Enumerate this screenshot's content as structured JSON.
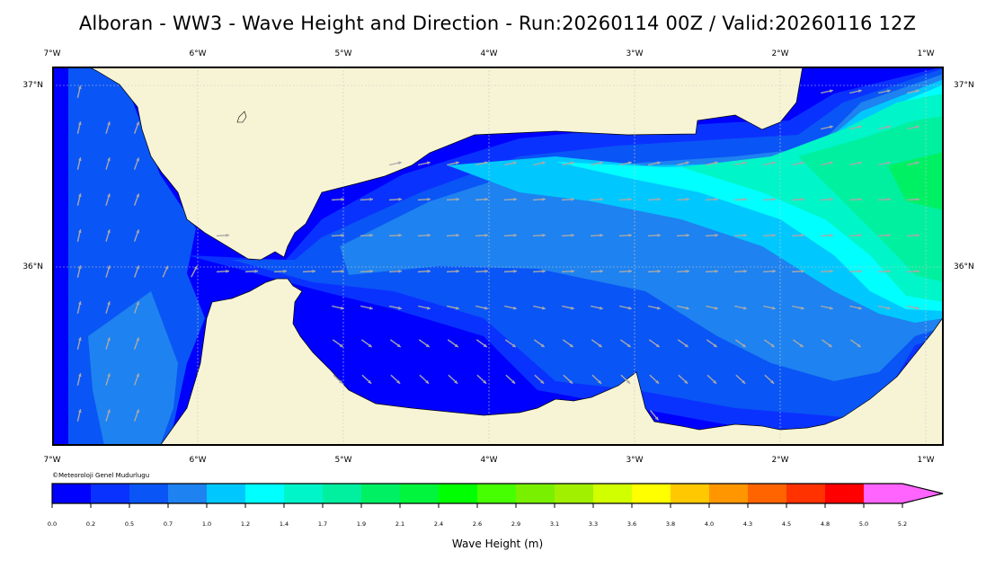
{
  "title": "Alboran - WW3 - Wave Height and Direction - Run:20260114 00Z / Valid:20260116 12Z",
  "map": {
    "lon_labels": [
      "7°W",
      "6°W",
      "5°W",
      "4°W",
      "3°W",
      "2°W",
      "1°W"
    ],
    "lat_labels": [
      "37°N",
      "36°N"
    ],
    "credit": "©Meteoroloji Genel Mudurlugu",
    "land_color": "#f7f4d6",
    "arrow_color": "#a9a9a9"
  },
  "colorbar": {
    "title": "Wave Height (m)",
    "colors": [
      "#0000ff",
      "#0a32ff",
      "#0a55f5",
      "#1e82f0",
      "#00c8ff",
      "#00ffff",
      "#00f5c8",
      "#00f0a0",
      "#00f064",
      "#00f53c",
      "#00ff00",
      "#46ff00",
      "#78f000",
      "#a0f000",
      "#d2ff00",
      "#ffff00",
      "#ffc800",
      "#ff9600",
      "#ff6400",
      "#ff3200",
      "#ff0000",
      "#ff64ff"
    ],
    "labels": [
      "0.0",
      "0.2",
      "0.5",
      "0.7",
      "1.0",
      "1.2",
      "1.4",
      "1.7",
      "1.9",
      "2.1",
      "2.4",
      "2.6",
      "2.9",
      "3.1",
      "3.3",
      "3.6",
      "3.8",
      "4.0",
      "4.3",
      "4.5",
      "4.8",
      "5.0",
      "5.2"
    ]
  }
}
